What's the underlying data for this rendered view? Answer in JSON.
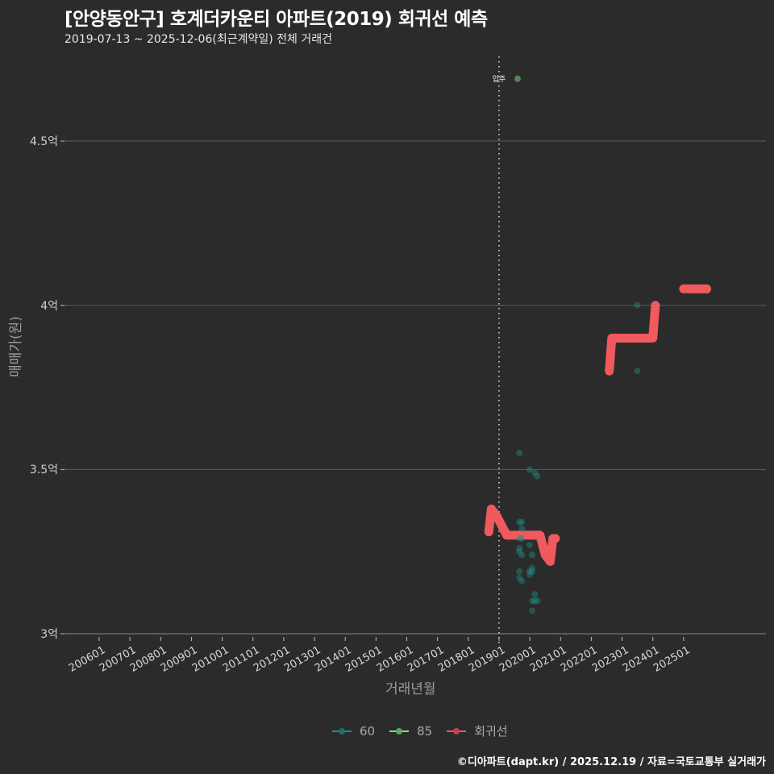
{
  "header": {
    "title": "[안양동안구] 호계더카운티 아파트(2019) 회귀선 예측",
    "subtitle": "2019-07-13 ~ 2025-12-06(최근계약일) 전체 거래건"
  },
  "axes": {
    "ylabel": "매매가(원)",
    "xlabel": "거래년월",
    "yticks": [
      "3억",
      "3.5억",
      "4억",
      "4.5억"
    ],
    "xticks": [
      "200601",
      "200701",
      "200801",
      "200901",
      "201001",
      "201101",
      "201201",
      "201301",
      "201401",
      "201501",
      "201601",
      "201701",
      "201801",
      "201901",
      "202001",
      "202101",
      "202201",
      "202301",
      "202401",
      "202501"
    ]
  },
  "annotation": {
    "label": "입주",
    "x": "201901"
  },
  "legend": {
    "items": [
      {
        "label": "60",
        "color": "#1f8f80"
      },
      {
        "label": "85",
        "color": "#7fe07a"
      },
      {
        "label": "회귀선",
        "color": "#f0595e"
      }
    ]
  },
  "caption": "©디아파트(dapt.kr) / 2025.12.19 / 자료=국토교통부 실거래가",
  "colors": {
    "background": "#2b2b2c",
    "grid": "#5a5a5a",
    "series_60": "#1f8f80",
    "series_85": "#7fe07a",
    "regression": "#f0595e"
  },
  "chart_data": {
    "type": "scatter",
    "title": "[안양동안구] 호계더카운티 아파트(2019) 회귀선 예측",
    "subtitle": "2019-07-13 ~ 2025-12-06(최근계약일) 전체 거래건",
    "xlabel": "거래년월",
    "ylabel": "매매가(원)",
    "ylim": [
      2.98,
      4.77
    ],
    "y_unit": "억",
    "xlim": [
      "2005-01",
      "2026-12"
    ],
    "grid": true,
    "legend_position": "bottom",
    "vline": {
      "x": "2019-01",
      "label": "입주",
      "style": "dotted"
    },
    "series": [
      {
        "name": "60",
        "type": "scatter",
        "points": [
          {
            "x": "2019-08",
            "y": 3.55
          },
          {
            "x": "2019-12",
            "y": 3.5
          },
          {
            "x": "2020-02",
            "y": 3.49
          },
          {
            "x": "2020-03",
            "y": 3.48
          },
          {
            "x": "2019-08",
            "y": 3.34
          },
          {
            "x": "2019-09",
            "y": 3.34
          },
          {
            "x": "2019-09",
            "y": 3.32
          },
          {
            "x": "2019-08",
            "y": 3.29
          },
          {
            "x": "2019-09",
            "y": 3.29
          },
          {
            "x": "2019-12",
            "y": 3.27
          },
          {
            "x": "2019-08",
            "y": 3.26
          },
          {
            "x": "2019-08",
            "y": 3.25
          },
          {
            "x": "2019-09",
            "y": 3.24
          },
          {
            "x": "2020-01",
            "y": 3.24
          },
          {
            "x": "2019-08",
            "y": 3.19
          },
          {
            "x": "2019-08",
            "y": 3.17
          },
          {
            "x": "2019-09",
            "y": 3.16
          },
          {
            "x": "2019-12",
            "y": 3.19
          },
          {
            "x": "2020-01",
            "y": 3.2
          },
          {
            "x": "2020-01",
            "y": 3.19
          },
          {
            "x": "2019-12",
            "y": 3.18
          },
          {
            "x": "2020-02",
            "y": 3.12
          },
          {
            "x": "2020-01",
            "y": 3.1
          },
          {
            "x": "2020-02",
            "y": 3.1
          },
          {
            "x": "2020-03",
            "y": 3.1
          },
          {
            "x": "2020-01",
            "y": 3.07
          },
          {
            "x": "2023-06",
            "y": 4.0
          },
          {
            "x": "2023-06",
            "y": 3.8
          }
        ]
      },
      {
        "name": "85",
        "type": "scatter",
        "points": [
          {
            "x": "2019-07",
            "y": 4.69
          }
        ]
      },
      {
        "name": "회귀선",
        "type": "line",
        "segments": [
          [
            {
              "x": "2018-09",
              "y": 3.31
            },
            {
              "x": "2018-10",
              "y": 3.38
            },
            {
              "x": "2018-12",
              "y": 3.36
            },
            {
              "x": "2019-04",
              "y": 3.3
            },
            {
              "x": "2020-05",
              "y": 3.3
            },
            {
              "x": "2020-07",
              "y": 3.24
            },
            {
              "x": "2020-09",
              "y": 3.22
            },
            {
              "x": "2020-10",
              "y": 3.29
            },
            {
              "x": "2020-11",
              "y": 3.29
            }
          ],
          [
            {
              "x": "2022-08",
              "y": 3.8
            },
            {
              "x": "2022-09",
              "y": 3.9
            },
            {
              "x": "2024-01",
              "y": 3.9
            },
            {
              "x": "2024-02",
              "y": 4.0
            }
          ],
          [
            {
              "x": "2025-01",
              "y": 4.05
            },
            {
              "x": "2025-10",
              "y": 4.05
            }
          ]
        ]
      }
    ]
  }
}
